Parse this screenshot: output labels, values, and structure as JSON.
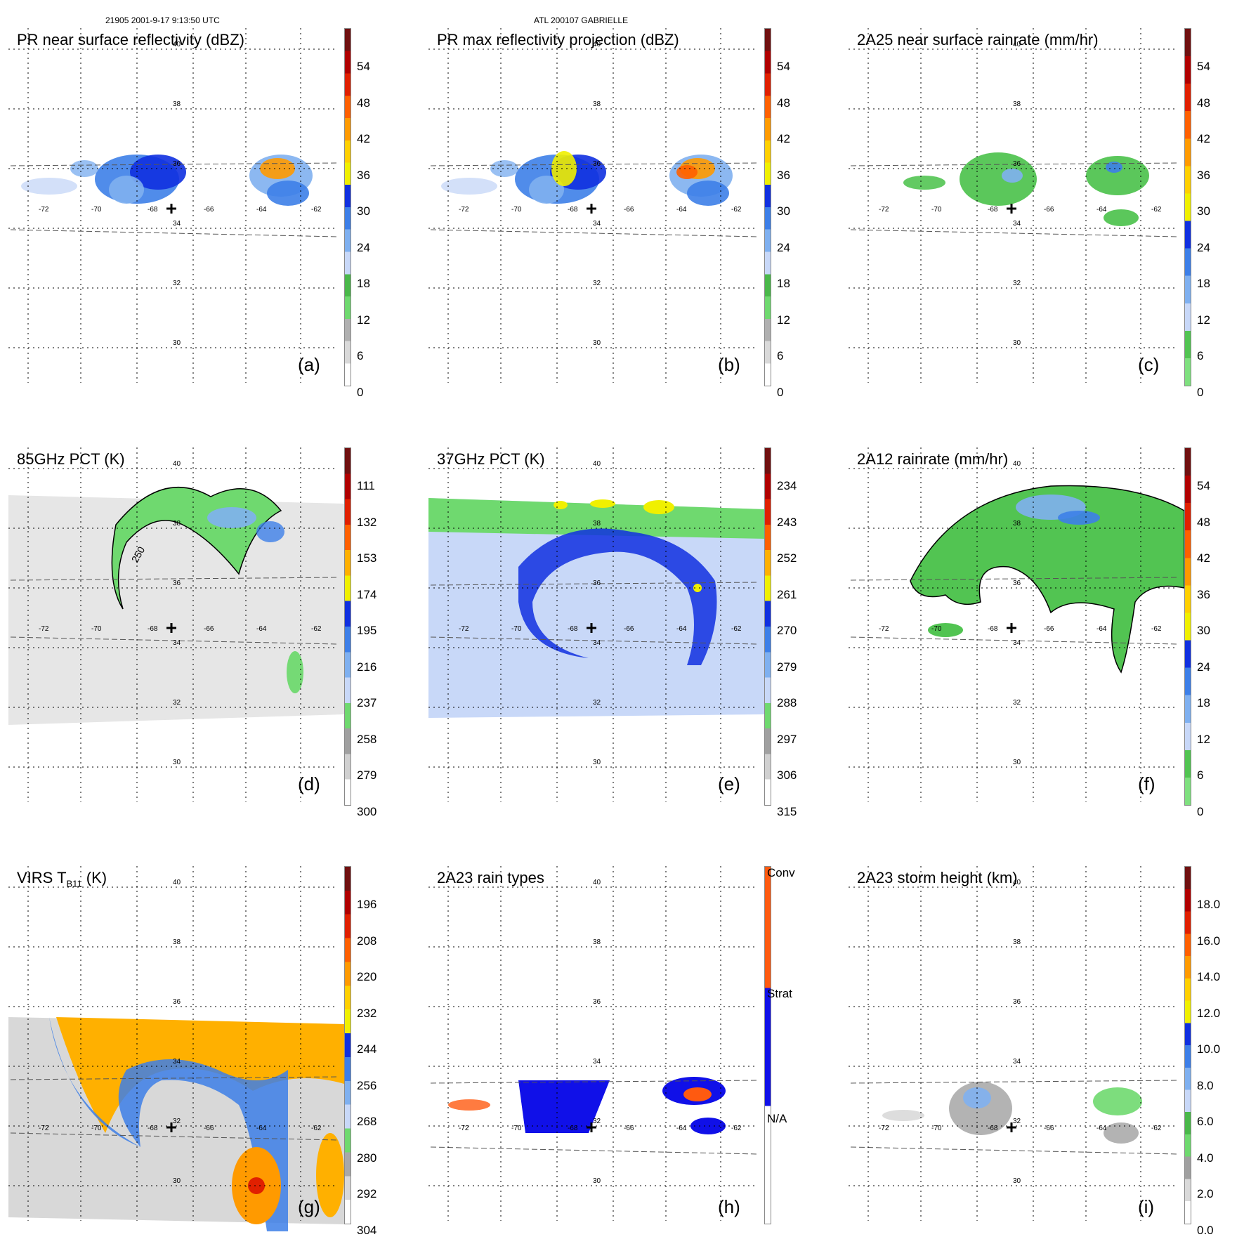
{
  "header": {
    "orbit_time": "21905 2001-9-17 9:13:50 UTC",
    "storm": "ATL 200107 GABRIELLE"
  },
  "grid": {
    "lon_labels": [
      "-72",
      "-70",
      "-68",
      "-66",
      "-64",
      "-62"
    ],
    "lat_labels": [
      "40",
      "38",
      "36",
      "34",
      "32",
      "30"
    ]
  },
  "panels": [
    {
      "id": "a",
      "title": "PR near surface reflectivity (dBZ)",
      "label": "(a)",
      "scale": "dbz",
      "ticks": [
        "54",
        "48",
        "42",
        "36",
        "30",
        "24",
        "18",
        "12",
        "6",
        "0"
      ]
    },
    {
      "id": "b",
      "title": "PR max reflectivity projection (dBZ)",
      "label": "(b)",
      "scale": "dbz",
      "ticks": [
        "54",
        "48",
        "42",
        "36",
        "30",
        "24",
        "18",
        "12",
        "6",
        "0"
      ]
    },
    {
      "id": "c",
      "title": "2A25 near surface rainrate (mm/hr)",
      "label": "(c)",
      "scale": "rain",
      "ticks": [
        "54",
        "48",
        "42",
        "36",
        "30",
        "24",
        "18",
        "12",
        "6",
        "0"
      ]
    },
    {
      "id": "d",
      "title": "85GHz PCT (K)",
      "label": "(d)",
      "scale": "pct",
      "ticks": [
        "111",
        "132",
        "153",
        "174",
        "195",
        "216",
        "237",
        "258",
        "279",
        "300"
      ],
      "contour_label": "250"
    },
    {
      "id": "e",
      "title": "37GHz PCT (K)",
      "label": "(e)",
      "scale": "pct",
      "ticks": [
        "234",
        "243",
        "252",
        "261",
        "270",
        "279",
        "288",
        "297",
        "306",
        "315"
      ]
    },
    {
      "id": "f",
      "title": "2A12 rainrate (mm/hr)",
      "label": "(f)",
      "scale": "rain",
      "ticks": [
        "54",
        "48",
        "42",
        "36",
        "30",
        "24",
        "18",
        "12",
        "6",
        "0"
      ]
    },
    {
      "id": "g",
      "title_main": "VIRS T",
      "title_sub": "B11",
      "title_unit": " (K)",
      "label": "(g)",
      "scale": "ir",
      "ticks": [
        "196",
        "208",
        "220",
        "232",
        "244",
        "256",
        "268",
        "280",
        "292",
        "304"
      ]
    },
    {
      "id": "h",
      "title": "2A23 rain types",
      "label": "(h)",
      "scale": "types",
      "ticks": [
        "Conv",
        "Strat",
        "N/A"
      ]
    },
    {
      "id": "i",
      "title": "2A23 storm height (km)",
      "label": "(i)",
      "scale": "height",
      "ticks": [
        "18.0",
        "16.0",
        "14.0",
        "12.0",
        "10.0",
        "8.0",
        "6.0",
        "4.0",
        "2.0",
        "0.0"
      ]
    }
  ],
  "colors": {
    "dbz": [
      "#ffffff",
      "#d9d9d9",
      "#b0b0b0",
      "#6fd96f",
      "#4ab84a",
      "#c8d8f8",
      "#7fb0f0",
      "#3d7fe8",
      "#1030e0",
      "#f0f000",
      "#ffd000",
      "#ff9a00",
      "#ff6000",
      "#e02000",
      "#b00000",
      "#701010"
    ],
    "rain": [
      "#7fe07f",
      "#52c452",
      "#c8d8f8",
      "#7fb0f0",
      "#3d7fe8",
      "#1030e0",
      "#f0f000",
      "#ffd000",
      "#ff9a00",
      "#ff6000",
      "#e02000",
      "#b00000",
      "#701010"
    ],
    "types": [
      "#ffffff",
      "#1010e8",
      "#ff5a10"
    ],
    "storm_track": "#000000",
    "swath_edge": "#555555"
  }
}
